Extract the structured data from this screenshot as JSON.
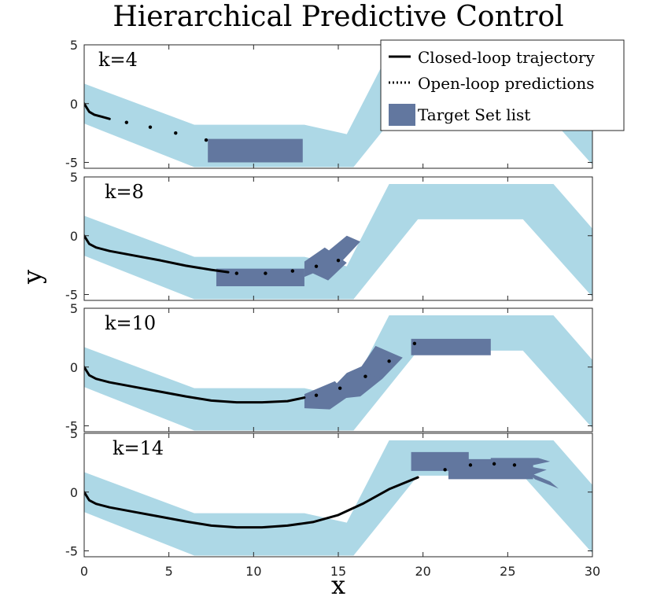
{
  "chart_data": {
    "type": "line",
    "title": "Hierarchical Predictive Control",
    "xlabel": "x",
    "ylabel": "y",
    "xlim": [
      0,
      30
    ],
    "ylim": [
      -5.5,
      5
    ],
    "x_ticks": [
      0,
      5,
      10,
      15,
      20,
      25,
      30
    ],
    "y_ticks": [
      -5,
      0,
      5
    ],
    "colors": {
      "corridor": "#add8e6",
      "target": "#62779f",
      "trajectory": "#000000"
    },
    "legend": {
      "position": "top-right",
      "entries": [
        {
          "label": "Closed-loop trajectory",
          "style": "solid"
        },
        {
          "label": "Open-loop predictions",
          "style": "dotted"
        },
        {
          "label": "Target Set list",
          "style": "patch"
        }
      ]
    },
    "corridor": {
      "upper": [
        [
          0,
          1.7
        ],
        [
          6.5,
          -1.8
        ],
        [
          13,
          -1.8
        ],
        [
          15.5,
          -2.6
        ],
        [
          18,
          4.4
        ],
        [
          27.7,
          4.4
        ],
        [
          30,
          0.6
        ]
      ],
      "lower": [
        [
          30,
          -5.2
        ],
        [
          25.9,
          1.4
        ],
        [
          19.7,
          1.4
        ],
        [
          15.9,
          -5.4
        ],
        [
          6.5,
          -5.4
        ],
        [
          0,
          -1.7
        ]
      ]
    },
    "panels": [
      {
        "k_label": "k=4",
        "closed_loop": {
          "x": [
            0,
            0.3,
            0.6,
            1.0,
            1.5
          ],
          "y": [
            0,
            -0.7,
            -0.95,
            -1.1,
            -1.3
          ]
        },
        "open_loop": {
          "x": [
            2.5,
            3.9,
            5.4,
            7.2
          ],
          "y": [
            -1.6,
            -2.0,
            -2.5,
            -3.1
          ]
        },
        "target_sets": [
          [
            [
              7.3,
              -3.0
            ],
            [
              12.9,
              -3.0
            ],
            [
              12.9,
              -5.0
            ],
            [
              7.3,
              -5.0
            ]
          ]
        ]
      },
      {
        "k_label": "k=8",
        "closed_loop": {
          "x": [
            0,
            0.3,
            0.7,
            1.5,
            3,
            4.5,
            6,
            7.5,
            8.5
          ],
          "y": [
            0,
            -0.7,
            -1.0,
            -1.3,
            -1.7,
            -2.1,
            -2.55,
            -2.9,
            -3.1
          ]
        },
        "open_loop": {
          "x": [
            9.0,
            10.7,
            12.3,
            13.7,
            15.0
          ],
          "y": [
            -3.2,
            -3.2,
            -3.0,
            -2.6,
            -2.1
          ]
        },
        "target_sets": [
          [
            [
              7.8,
              -2.8
            ],
            [
              13.0,
              -2.8
            ],
            [
              13.0,
              -4.3
            ],
            [
              7.8,
              -4.3
            ]
          ],
          [
            [
              13.0,
              -3.5
            ],
            [
              13.0,
              -2.2
            ],
            [
              14.2,
              -1.0
            ],
            [
              15.5,
              -2.3
            ],
            [
              14.4,
              -3.8
            ],
            [
              13.5,
              -3.2
            ]
          ],
          [
            [
              14.4,
              -1.3
            ],
            [
              15.5,
              0.0
            ],
            [
              16.3,
              -0.5
            ],
            [
              15.2,
              -2.2
            ]
          ]
        ]
      },
      {
        "k_label": "k=10",
        "closed_loop": {
          "x": [
            0,
            0.3,
            0.7,
            1.5,
            3,
            4.5,
            6,
            7.5,
            9,
            10.5,
            12,
            13
          ],
          "y": [
            0,
            -0.7,
            -1.0,
            -1.3,
            -1.7,
            -2.1,
            -2.5,
            -2.85,
            -3.0,
            -3.0,
            -2.9,
            -2.6
          ]
        },
        "open_loop": {
          "x": [
            13.7,
            15.1,
            16.6,
            18.0,
            19.5
          ],
          "y": [
            -2.4,
            -1.8,
            -0.8,
            0.5,
            2.0
          ]
        },
        "target_sets": [
          [
            [
              13.0,
              -3.5
            ],
            [
              13.0,
              -2.3
            ],
            [
              14.8,
              -1.2
            ],
            [
              15.6,
              -2.5
            ],
            [
              14.5,
              -3.6
            ]
          ],
          [
            [
              14.5,
              -2.0
            ],
            [
              15.5,
              -0.5
            ],
            [
              16.6,
              0.2
            ],
            [
              17.6,
              -1.0
            ],
            [
              16.3,
              -2.5
            ],
            [
              15.0,
              -2.7
            ]
          ],
          [
            [
              16.2,
              -0.3
            ],
            [
              17.2,
              1.8
            ],
            [
              18.8,
              0.8
            ],
            [
              17.6,
              -1.0
            ]
          ],
          [
            [
              19.3,
              2.4
            ],
            [
              24.0,
              2.4
            ],
            [
              24.0,
              1.0
            ],
            [
              19.3,
              1.0
            ]
          ]
        ]
      },
      {
        "k_label": "k=14",
        "closed_loop": {
          "x": [
            0,
            0.3,
            0.7,
            1.5,
            3,
            4.5,
            6,
            7.5,
            9,
            10.5,
            12,
            13.5,
            15,
            16.5,
            18,
            19.7
          ],
          "y": [
            0,
            -0.7,
            -1.0,
            -1.3,
            -1.7,
            -2.1,
            -2.5,
            -2.85,
            -3.0,
            -3.0,
            -2.85,
            -2.55,
            -1.95,
            -0.95,
            0.25,
            1.25
          ]
        },
        "open_loop": {
          "x": [
            21.3,
            22.8,
            24.2,
            25.4
          ],
          "y": [
            1.9,
            2.3,
            2.4,
            2.3
          ]
        },
        "target_sets": [
          [
            [
              19.3,
              3.4
            ],
            [
              22.7,
              3.4
            ],
            [
              22.7,
              1.8
            ],
            [
              19.3,
              1.8
            ]
          ],
          [
            [
              21.5,
              2.8
            ],
            [
              26.5,
              2.8
            ],
            [
              26.5,
              1.1
            ],
            [
              21.5,
              1.1
            ]
          ],
          [
            [
              24.0,
              2.9
            ],
            [
              26.8,
              2.9
            ],
            [
              27.5,
              2.6
            ],
            [
              26.2,
              2.2
            ],
            [
              27.3,
              1.9
            ],
            [
              26.0,
              1.2
            ],
            [
              24.0,
              1.2
            ]
          ],
          [
            [
              26.2,
              1.7
            ],
            [
              27.5,
              0.9
            ],
            [
              28.0,
              0.3
            ],
            [
              26.6,
              1.1
            ]
          ]
        ]
      }
    ]
  }
}
